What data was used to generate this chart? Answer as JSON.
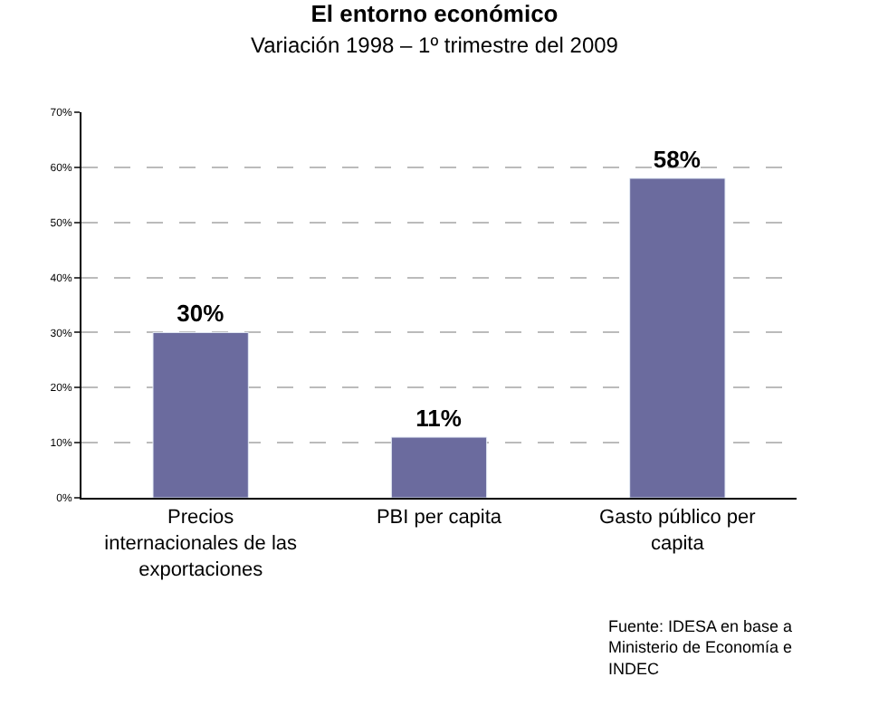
{
  "chart_data": {
    "type": "bar",
    "title": "El entorno económico",
    "subtitle": "Variación 1998 – 1º trimestre del 2009",
    "categories": [
      "Precios internacionales de las exportaciones",
      "PBI per capita",
      "Gasto público per capita"
    ],
    "values": [
      30,
      11,
      58
    ],
    "color": "#6b6b9e",
    "value_labels": [
      "30%",
      "11%",
      "58%"
    ],
    "ylim": [
      0,
      70
    ],
    "yticks": [
      {
        "value": 0,
        "label": "0%"
      },
      {
        "value": 10,
        "label": "10%"
      },
      {
        "value": 20,
        "label": "20%"
      },
      {
        "value": 30,
        "label": "30%"
      },
      {
        "value": 40,
        "label": "40%"
      },
      {
        "value": 50,
        "label": "50%"
      },
      {
        "value": 60,
        "label": "60%"
      },
      {
        "value": 70,
        "label": "70%"
      }
    ],
    "grid": "y",
    "annotations": [
      "Fuente: IDESA en base a Ministerio de Economía e INDEC"
    ]
  }
}
